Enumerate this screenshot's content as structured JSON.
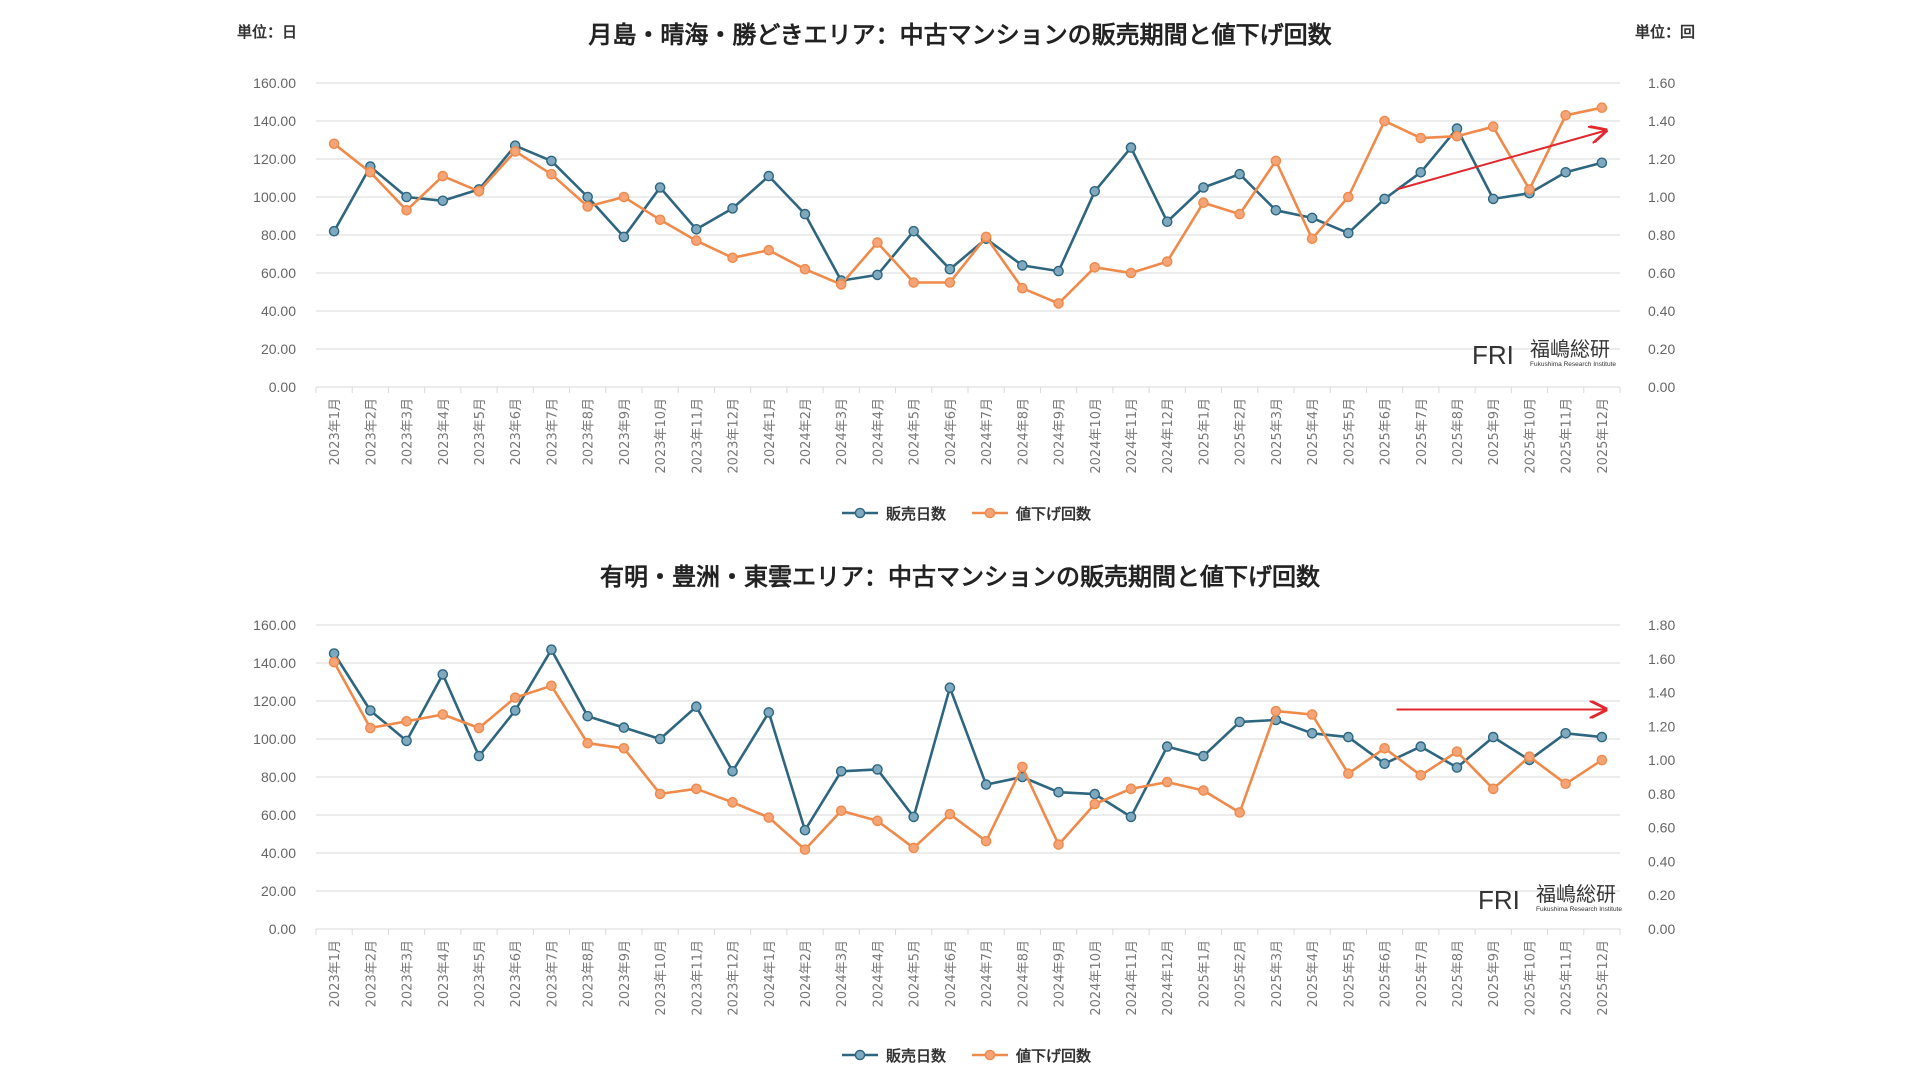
{
  "colors": {
    "series1": "#2e6680",
    "series1_fill": "#7fa9bf",
    "series2": "#ef8a4a",
    "series2_fill": "#f4a477",
    "arrow": "#e0282e",
    "grid": "#d9d9d9"
  },
  "watermark": {
    "logo": "FRI",
    "name": "福嶋総研",
    "sub": "Fukushima Research Institute"
  },
  "x_labels": [
    "2023年1月",
    "2023年2月",
    "2023年3月",
    "2023年4月",
    "2023年5月",
    "2023年6月",
    "2023年7月",
    "2023年8月",
    "2023年9月",
    "2023年10月",
    "2023年11月",
    "2023年12月",
    "2024年1月",
    "2024年2月",
    "2024年3月",
    "2024年4月",
    "2024年5月",
    "2024年6月",
    "2024年7月",
    "2024年8月",
    "2024年9月",
    "2024年10月",
    "2024年11月",
    "2024年12月",
    "2025年1月",
    "2025年2月",
    "2025年3月",
    "2025年4月",
    "2025年5月",
    "2025年6月",
    "2025年7月",
    "2025年8月",
    "2025年9月",
    "2025年10月",
    "2025年11月",
    "2025年12月"
  ],
  "chart_data": [
    {
      "type": "line",
      "title": "月島・晴海・勝どきエリア：中古マンションの販売期間と値下げ回数",
      "unit_left": "単位：日",
      "unit_right": "単位：回",
      "y_left": {
        "min": 0,
        "max": 160,
        "step": 20,
        "ticks": [
          "0.00",
          "20.00",
          "40.00",
          "60.00",
          "80.00",
          "100.00",
          "120.00",
          "140.00",
          "160.00"
        ]
      },
      "y_right": {
        "min": 0,
        "max": 1.6,
        "step": 0.2,
        "ticks": [
          "0.00",
          "0.20",
          "0.40",
          "0.60",
          "0.80",
          "1.00",
          "1.20",
          "1.40",
          "1.60"
        ]
      },
      "legend": "bottom",
      "grid": true,
      "series": [
        {
          "name": "販売日数",
          "axis": "left",
          "values": [
            82,
            116,
            100,
            98,
            104,
            127,
            119,
            100,
            79,
            105,
            83,
            94,
            111,
            91,
            56,
            59,
            82,
            62,
            78,
            64,
            61,
            103,
            126,
            87,
            105,
            112,
            93,
            89,
            81,
            99,
            113,
            136,
            99,
            102,
            113,
            118
          ]
        },
        {
          "name": "値下げ回数",
          "axis": "right",
          "values": [
            1.28,
            1.13,
            0.93,
            1.11,
            1.03,
            1.24,
            1.12,
            0.95,
            1.0,
            0.88,
            0.77,
            0.68,
            0.72,
            0.62,
            0.54,
            0.76,
            0.55,
            0.55,
            0.79,
            0.52,
            0.44,
            0.63,
            0.6,
            0.66,
            0.97,
            0.91,
            1.19,
            0.78,
            1.0,
            1.4,
            1.31,
            1.32,
            1.37,
            1.04,
            1.43,
            1.47
          ]
        }
      ],
      "annotation": {
        "type": "arrow",
        "from": {
          "x": "2025年6月",
          "y": 104
        },
        "to": {
          "x": "2025年12月",
          "y": 135
        }
      }
    },
    {
      "type": "line",
      "title": "有明・豊洲・東雲エリア：中古マンションの販売期間と値下げ回数",
      "y_left": {
        "min": 0,
        "max": 160,
        "step": 20,
        "ticks": [
          "0.00",
          "20.00",
          "40.00",
          "60.00",
          "80.00",
          "100.00",
          "120.00",
          "140.00",
          "160.00"
        ]
      },
      "y_right": {
        "min": 0,
        "max": 1.8,
        "step": 0.2,
        "ticks": [
          "0.00",
          "0.20",
          "0.40",
          "0.60",
          "0.80",
          "1.00",
          "1.20",
          "1.40",
          "1.60",
          "1.80"
        ]
      },
      "legend": "bottom",
      "grid": true,
      "series": [
        {
          "name": "販売日数",
          "axis": "left",
          "values": [
            145,
            115,
            99,
            134,
            91,
            115,
            147,
            112,
            106,
            100,
            117,
            83,
            114,
            52,
            83,
            84,
            59,
            127,
            76,
            80,
            72,
            71,
            59,
            96,
            91,
            109,
            110,
            103,
            101,
            87,
            96,
            85,
            101,
            89,
            103,
            101
          ]
        },
        {
          "name": "値下げ回数",
          "axis": "right",
          "values": [
            1.58,
            1.19,
            1.23,
            1.27,
            1.19,
            1.37,
            1.44,
            1.1,
            1.07,
            0.8,
            0.83,
            0.75,
            0.66,
            0.47,
            0.7,
            0.64,
            0.48,
            0.68,
            0.52,
            0.96,
            0.5,
            0.74,
            0.83,
            0.87,
            0.82,
            0.69,
            1.29,
            1.27,
            0.92,
            1.07,
            0.91,
            1.05,
            0.83,
            1.02,
            0.86,
            1.0
          ]
        }
      ],
      "annotation": {
        "type": "arrow",
        "from": {
          "x": "2025年6月",
          "y": 1.3
        },
        "to": {
          "x": "2025年12月",
          "y": 1.3
        }
      }
    }
  ]
}
